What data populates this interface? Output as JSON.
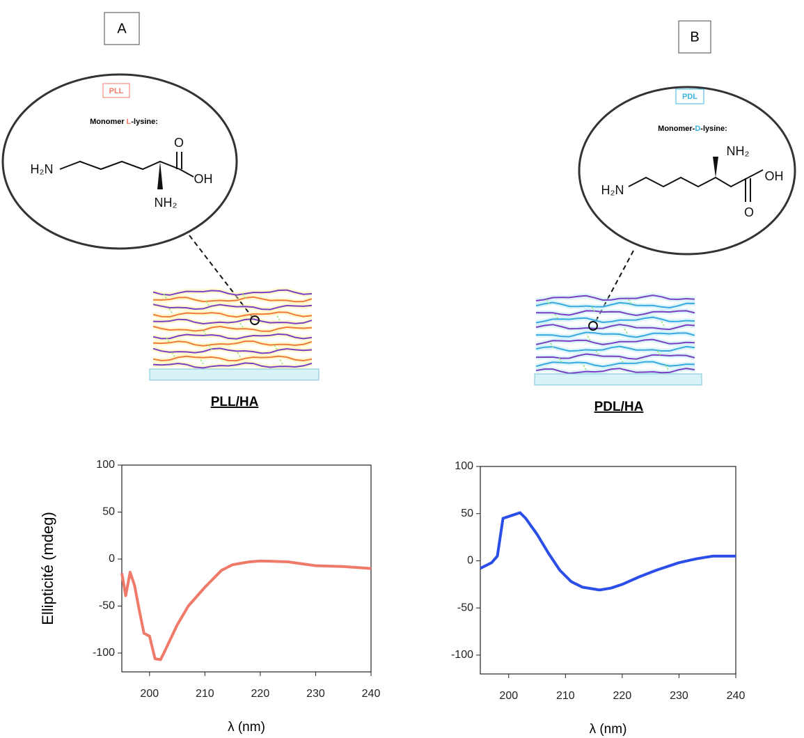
{
  "panels": [
    {
      "label": "A",
      "tag": "PLL",
      "monomer": [
        "Monomer",
        "L",
        "-lysine:"
      ],
      "atoms": [
        "H₂N",
        "OH",
        "O",
        "NH₂"
      ],
      "caption": "PLL/HA"
    },
    {
      "label": "B",
      "tag": "PDL",
      "monomer": [
        "Monomer-",
        "D",
        "-lysine:"
      ],
      "atoms": [
        "H₂N",
        "OH",
        "O",
        "NH₂"
      ],
      "caption": "PDL/HA"
    }
  ],
  "chart_data": [
    {
      "type": "line",
      "ylabel": "Ellipticité (mdeg)",
      "xlabel": "λ (nm)",
      "color": "#f07a6a",
      "x": [
        195,
        195.7,
        196.5,
        197.3,
        198,
        199,
        200,
        201,
        202,
        203,
        205,
        207,
        210,
        213,
        215,
        218,
        220,
        225,
        230,
        235,
        240
      ],
      "values": [
        -15,
        -39,
        -14,
        -28,
        -50,
        -79,
        -82,
        -106,
        -107,
        -95,
        -70,
        -50,
        -30,
        -12,
        -6,
        -3,
        -2,
        -3,
        -7,
        -8,
        -10
      ],
      "xlim": [
        195,
        240
      ],
      "ylim": [
        -120,
        100
      ],
      "xticks": [
        200,
        210,
        220,
        230,
        240
      ],
      "yticks": [
        -100,
        -50,
        0,
        50,
        100
      ]
    },
    {
      "type": "line",
      "xlabel": "λ (nm)",
      "color": "#2b4de8",
      "x": [
        195,
        197,
        198,
        199,
        200,
        202,
        203,
        205,
        207,
        209,
        211,
        213,
        216,
        218,
        220,
        223,
        226,
        230,
        233,
        236,
        240
      ],
      "values": [
        -8,
        -2,
        5,
        45,
        47,
        51,
        45,
        28,
        8,
        -10,
        -22,
        -28,
        -31,
        -29,
        -25,
        -17,
        -10,
        -2,
        2,
        5,
        5
      ],
      "xlim": [
        195,
        240
      ],
      "ylim": [
        -120,
        100
      ],
      "xticks": [
        200,
        210,
        220,
        230,
        240
      ],
      "yticks": [
        -100,
        -50,
        0,
        50,
        100
      ]
    }
  ]
}
